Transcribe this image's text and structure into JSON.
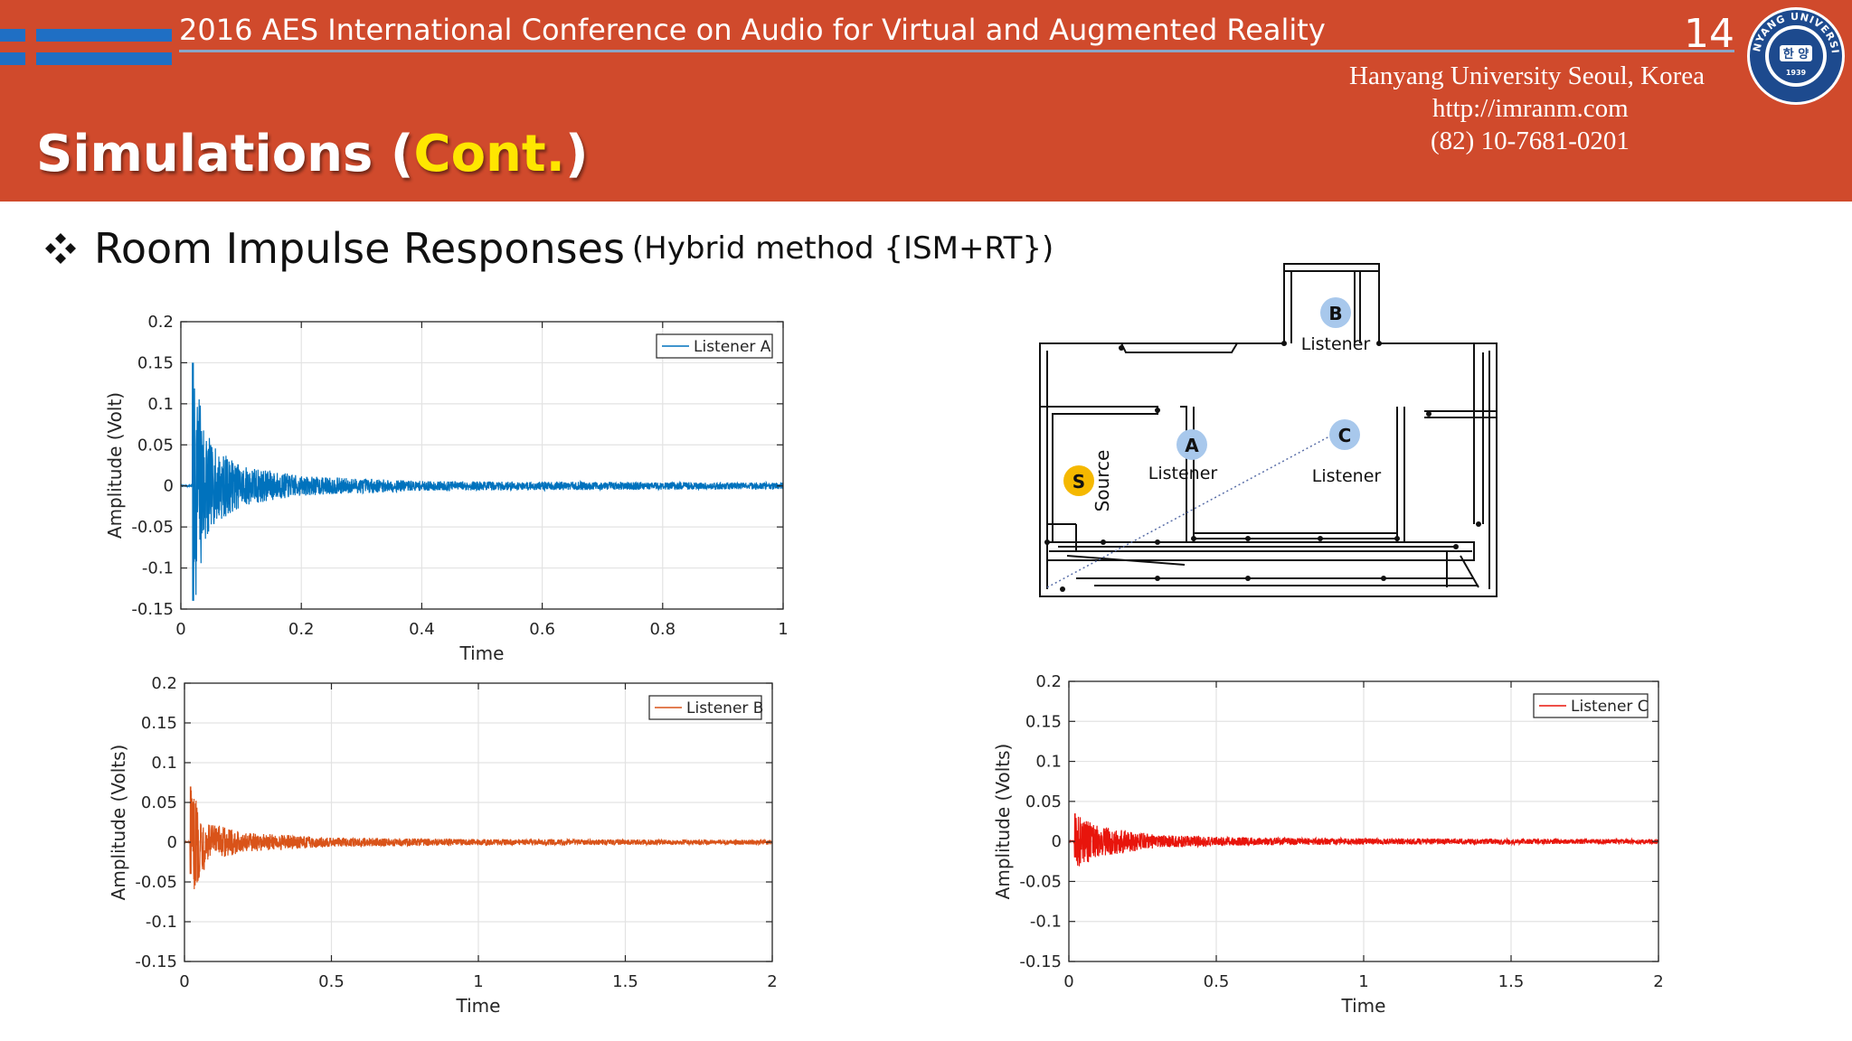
{
  "header": {
    "conference": "2016 AES International Conference on Audio for Virtual and Augmented Reality",
    "page_number": "14",
    "affiliation": "Hanyang University Seoul, Korea",
    "website": "http://imranm.com",
    "phone": "(82) 10-7681-0201",
    "title_main": "Simulations (",
    "title_accent": "Cont.",
    "title_close": ")",
    "brand_color": "#d04a2c",
    "accent_color": "#ffe600",
    "flag_color": "#1f6fc4",
    "seal": {
      "ring_text": "HANYANG UNIVERSITY",
      "inner_text": "한 양",
      "year": "1939"
    }
  },
  "bullet": {
    "icon": "four-diamond-bullet-icon",
    "text": "Room Impulse Responses",
    "subtext": "(Hybrid method {ISM+RT})"
  },
  "floorplan": {
    "source": {
      "letter": "S",
      "label": "Source",
      "color": "#f5b800"
    },
    "listeners": [
      {
        "letter": "A",
        "label": "Listener"
      },
      {
        "letter": "B",
        "label": "Listener"
      },
      {
        "letter": "C",
        "label": "Listener"
      }
    ],
    "marker_color": "#a8c8ec"
  },
  "chart_data": [
    {
      "type": "line",
      "legend": "Listener A",
      "legend_position": "top-right",
      "xlabel": "Time",
      "ylabel": "Amplitude (Volt)",
      "xlim": [
        0,
        1
      ],
      "ylim": [
        -0.15,
        0.2
      ],
      "xticks": [
        0,
        0.2,
        0.4,
        0.6,
        0.8,
        1
      ],
      "xtick_labels": [
        "0",
        "0.2",
        "0.4",
        "0.6",
        "0.8",
        "1"
      ],
      "yticks": [
        0.2,
        0.15,
        0.1,
        0.05,
        0,
        -0.05,
        -0.1,
        -0.15
      ],
      "ytick_labels": [
        "0.2",
        "0.15",
        "0.1",
        "0.05",
        "0",
        "-0.05",
        "-0.1",
        "-0.15"
      ],
      "grid": true,
      "color": "#0072bd",
      "peak_time": 0.02,
      "peak_max": 0.15,
      "peak_min": -0.14,
      "decay": [
        [
          0.02,
          0.15
        ],
        [
          0.05,
          0.05
        ],
        [
          0.1,
          0.025
        ],
        [
          0.2,
          0.012
        ],
        [
          0.4,
          0.006
        ],
        [
          1.0,
          0.004
        ]
      ]
    },
    {
      "type": "line",
      "legend": "Listener B",
      "legend_position": "top-right",
      "xlabel": "Time",
      "ylabel": "Amplitude (Volts)",
      "xlim": [
        0,
        2
      ],
      "ylim": [
        -0.15,
        0.2
      ],
      "xticks": [
        0,
        0.5,
        1,
        1.5,
        2
      ],
      "xtick_labels": [
        "0",
        "0.5",
        "1",
        "1.5",
        "2"
      ],
      "yticks": [
        0.2,
        0.15,
        0.1,
        0.05,
        0,
        -0.05,
        -0.1,
        -0.15
      ],
      "ytick_labels": [
        "0.2",
        "0.15",
        "0.1",
        "0.05",
        "0",
        "-0.05",
        "-0.1",
        "-0.15"
      ],
      "grid": true,
      "color": "#d95319",
      "peak_time": 0.02,
      "peak_max": 0.07,
      "peak_min": -0.04,
      "decay": [
        [
          0.02,
          0.07
        ],
        [
          0.08,
          0.025
        ],
        [
          0.2,
          0.012
        ],
        [
          0.5,
          0.006
        ],
        [
          1.0,
          0.004
        ],
        [
          2.0,
          0.003
        ]
      ]
    },
    {
      "type": "line",
      "legend": "Listener C",
      "legend_position": "top-right",
      "xlabel": "Time",
      "ylabel": "Amplitude (Volts)",
      "xlim": [
        0,
        2
      ],
      "ylim": [
        -0.15,
        0.2
      ],
      "xticks": [
        0,
        0.5,
        1,
        1.5,
        2
      ],
      "xtick_labels": [
        "0",
        "0.5",
        "1",
        "1.5",
        "2"
      ],
      "yticks": [
        0.2,
        0.15,
        0.1,
        0.05,
        0,
        -0.05,
        -0.1,
        -0.15
      ],
      "ytick_labels": [
        "0.2",
        "0.15",
        "0.1",
        "0.05",
        "0",
        "-0.05",
        "-0.1",
        "-0.15"
      ],
      "grid": true,
      "color": "#e8150c",
      "peak_time": 0.02,
      "peak_max": 0.035,
      "peak_min": -0.02,
      "decay": [
        [
          0.02,
          0.035
        ],
        [
          0.1,
          0.02
        ],
        [
          0.3,
          0.008
        ],
        [
          0.6,
          0.005
        ],
        [
          1.0,
          0.004
        ],
        [
          2.0,
          0.003
        ]
      ]
    }
  ]
}
